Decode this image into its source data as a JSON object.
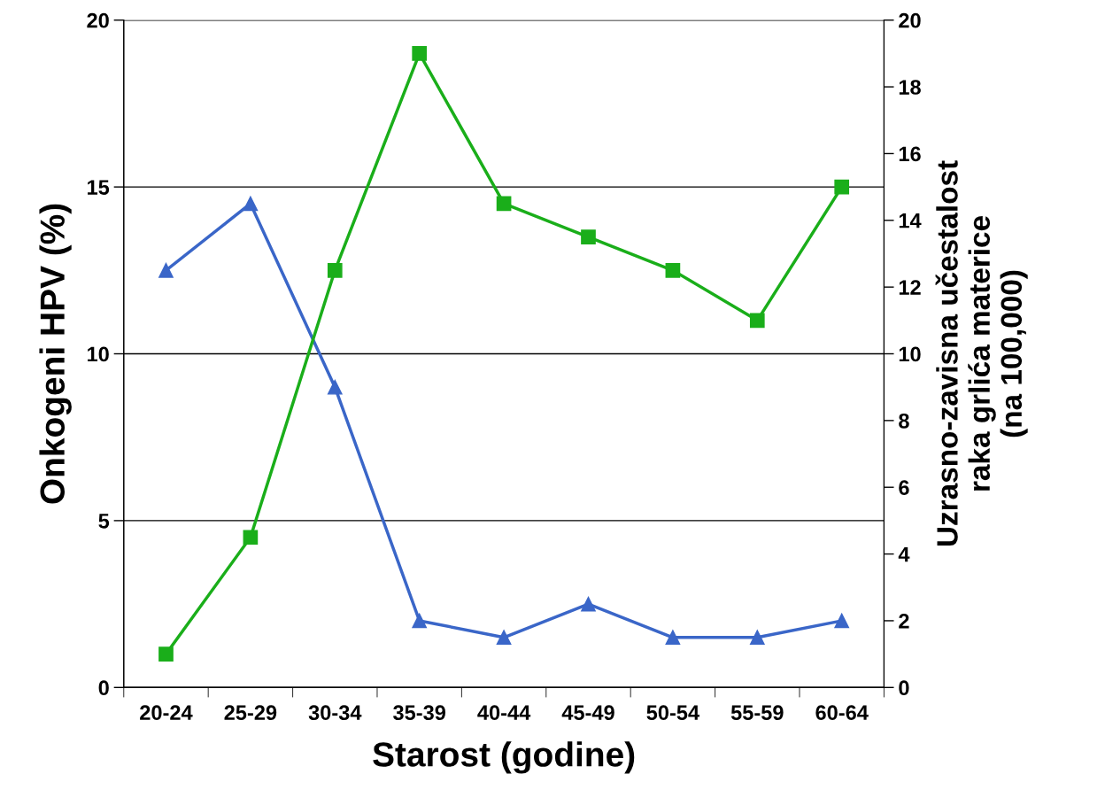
{
  "chart_data": {
    "type": "line",
    "xlabel": "Starost (godine)",
    "ylabel": "Onkogeni HPV (%)",
    "y2label": "Uzrasno-zavisna učestalost\nraka grlića materice\n(na 100,000)",
    "categories": [
      "20-24",
      "25-29",
      "30-34",
      "35-39",
      "40-44",
      "45-49",
      "50-54",
      "55-59",
      "60-64"
    ],
    "series": [
      {
        "color": "#3a66c8",
        "marker": "triangle",
        "values": [
          12.5,
          14.5,
          9,
          2,
          1.5,
          2.5,
          1.5,
          1.5,
          2
        ]
      },
      {
        "color": "#1aae1a",
        "marker": "square",
        "values": [
          1,
          4.5,
          12.5,
          19,
          14.5,
          13.5,
          12.5,
          11,
          15
        ]
      }
    ],
    "ylim": [
      0,
      20
    ],
    "yticks": [
      0,
      5,
      10,
      15,
      20
    ],
    "y2lim": [
      0,
      20
    ],
    "y2ticks": [
      0,
      2,
      4,
      6,
      8,
      10,
      12,
      14,
      16,
      18,
      20
    ],
    "grid": "y",
    "legend": false,
    "line_style": "solid"
  }
}
